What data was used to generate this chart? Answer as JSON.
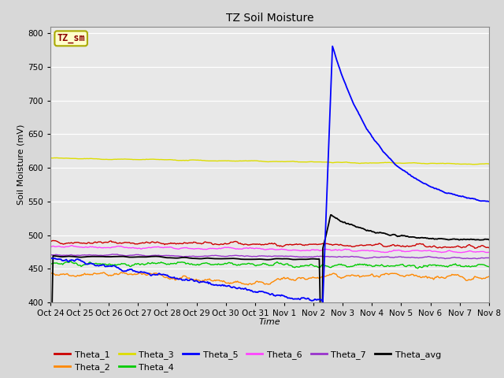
{
  "title": "TZ Soil Moisture",
  "xlabel": "Time",
  "ylabel": "Soil Moisture (mV)",
  "ylim": [
    400,
    810
  ],
  "yticks": [
    400,
    450,
    500,
    550,
    600,
    650,
    700,
    750,
    800
  ],
  "fig_bg": "#d8d8d8",
  "plot_bg": "#e8e8e8",
  "legend_label": "TZ_sm",
  "series_colors": {
    "Theta_1": "#cc0000",
    "Theta_2": "#ff8800",
    "Theta_3": "#dddd00",
    "Theta_4": "#00cc00",
    "Theta_5": "#0000ff",
    "Theta_6": "#ff44ff",
    "Theta_7": "#9933cc",
    "Theta_avg": "#000000"
  },
  "n_points": 500,
  "x_start": 0,
  "x_end": 15,
  "event_x": 9.33,
  "xtick_labels": [
    "Oct 24",
    "Oct 25",
    "Oct 26",
    "Oct 27",
    "Oct 28",
    "Oct 29",
    "Oct 30",
    "Oct 31",
    "Nov 1",
    "Nov 2",
    "Nov 3",
    "Nov 4",
    "Nov 5",
    "Nov 6",
    "Nov 7",
    "Nov 8"
  ],
  "xtick_positions": [
    0,
    1,
    2,
    3,
    4,
    5,
    6,
    7,
    8,
    9,
    10,
    11,
    12,
    13,
    14,
    15
  ]
}
